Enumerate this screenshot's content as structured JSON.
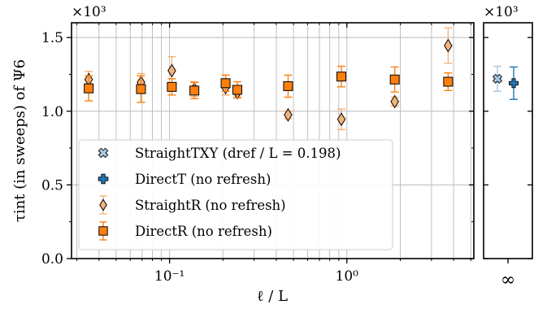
{
  "chart_data": [
    {
      "type": "scatter",
      "panel": "main",
      "x_scale": "log",
      "xlim": [
        0.028,
        5.2
      ],
      "ylim": [
        0,
        1.6
      ],
      "y_multiplier_label": "×10³",
      "ylabel": "τint (in sweeps) of Ψ6",
      "xlabel": "ℓ / L",
      "grid": "vertical log-minor lines at x positions",
      "x_ticks": [
        {
          "value": 0.1,
          "label": "10⁻¹"
        },
        {
          "value": 1,
          "label": "10⁰"
        }
      ],
      "y_ticks": [
        {
          "value": 0.0,
          "label": "0.0"
        },
        {
          "value": 0.5,
          "label": "0.5"
        },
        {
          "value": 1.0,
          "label": "1.0"
        },
        {
          "value": 1.5,
          "label": "1.5"
        }
      ],
      "legend_position": "lower-left",
      "series": [
        {
          "name": "StraightR (no refresh)",
          "marker": "diamond",
          "color": "#f5b37a",
          "points": [
            {
              "x": 0.035,
              "y": 1.215,
              "err": 0.055
            },
            {
              "x": 0.069,
              "y": 1.195,
              "err": 0.06
            },
            {
              "x": 0.103,
              "y": 1.275,
              "err": 0.095
            },
            {
              "x": 0.138,
              "y": 1.15,
              "err": 0.05
            },
            {
              "x": 0.207,
              "y": 1.16,
              "err": 0.05
            },
            {
              "x": 0.241,
              "y": 1.125,
              "err": 0.03
            },
            {
              "x": 0.466,
              "y": 0.975,
              "err": 0.025
            },
            {
              "x": 0.931,
              "y": 0.945,
              "err": 0.07
            },
            {
              "x": 1.862,
              "y": 1.065,
              "err": 0.03
            },
            {
              "x": 3.724,
              "y": 1.445,
              "err": 0.12
            }
          ]
        },
        {
          "name": "DirectR (no refresh)",
          "marker": "square",
          "color": "#ff7f0e",
          "points": [
            {
              "x": 0.035,
              "y": 1.155,
              "err": 0.085
            },
            {
              "x": 0.069,
              "y": 1.15,
              "err": 0.09
            },
            {
              "x": 0.103,
              "y": 1.165,
              "err": 0.055
            },
            {
              "x": 0.138,
              "y": 1.14,
              "err": 0.055
            },
            {
              "x": 0.207,
              "y": 1.19,
              "err": 0.055
            },
            {
              "x": 0.241,
              "y": 1.145,
              "err": 0.055
            },
            {
              "x": 0.466,
              "y": 1.17,
              "err": 0.075
            },
            {
              "x": 0.931,
              "y": 1.235,
              "err": 0.07
            },
            {
              "x": 1.862,
              "y": 1.215,
              "err": 0.085
            },
            {
              "x": 3.724,
              "y": 1.2,
              "err": 0.06
            }
          ]
        }
      ]
    },
    {
      "type": "scatter",
      "panel": "infinity",
      "x_tick_label": "∞",
      "ylim": [
        0,
        1.6
      ],
      "y_multiplier_label": "×10³",
      "series": [
        {
          "name": "StraightTXY (dref / L = 0.198)",
          "marker": "x-filled",
          "color": "#a7c7e3",
          "points": [
            {
              "y": 1.22,
              "err": 0.085
            }
          ]
        },
        {
          "name": "DirectT (no refresh)",
          "marker": "plus-filled",
          "color": "#1f77b4",
          "points": [
            {
              "y": 1.19,
              "err": 0.11
            }
          ]
        }
      ]
    }
  ]
}
